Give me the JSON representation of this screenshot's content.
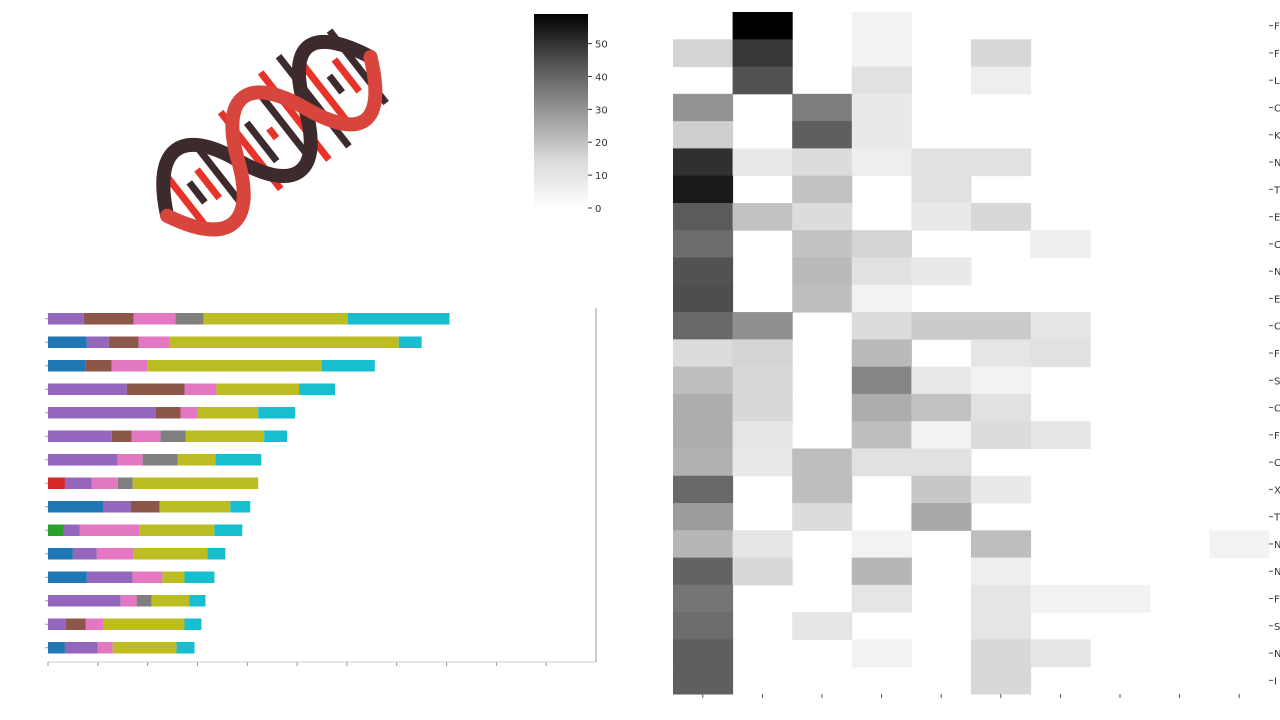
{
  "logo": {
    "icon": "dna-double-helix-icon",
    "colors": {
      "strand": "#d8453c",
      "dark": "#3d2a2c",
      "rung_red": "#e8332a"
    }
  },
  "chart_data": [
    {
      "type": "heatmap",
      "title": "",
      "colormap": "Greys",
      "colorbar": {
        "ticks": [
          0,
          10,
          20,
          30,
          40,
          50
        ],
        "range": [
          0,
          59
        ]
      },
      "row_labels": [
        "F",
        "F",
        "L",
        "C",
        "K",
        "N",
        "T",
        "E",
        "C",
        "N",
        "E",
        "C",
        "F",
        "S",
        "C",
        "F",
        "C",
        "X",
        "T",
        "N",
        "N",
        "F",
        "S",
        "N",
        "I"
      ],
      "n_columns": 10,
      "values": [
        [
          0,
          59,
          0,
          3,
          0,
          0,
          0,
          0,
          0,
          0
        ],
        [
          10,
          46,
          0,
          3,
          0,
          9,
          0,
          0,
          0,
          0
        ],
        [
          0,
          40,
          0,
          7,
          0,
          4,
          0,
          0,
          0,
          0
        ],
        [
          25,
          0,
          30,
          5,
          0,
          0,
          0,
          0,
          0,
          0
        ],
        [
          11,
          0,
          37,
          5,
          0,
          0,
          0,
          0,
          0,
          0
        ],
        [
          48,
          5,
          8,
          4,
          7,
          7,
          0,
          0,
          0,
          0
        ],
        [
          53,
          0,
          14,
          0,
          7,
          0,
          0,
          0,
          0,
          0
        ],
        [
          38,
          14,
          8,
          0,
          5,
          9,
          0,
          0,
          0,
          0
        ],
        [
          34,
          0,
          14,
          10,
          0,
          0,
          4,
          0,
          0,
          0
        ],
        [
          40,
          0,
          16,
          7,
          5,
          0,
          0,
          0,
          0,
          0
        ],
        [
          41,
          0,
          15,
          3,
          0,
          0,
          0,
          0,
          0,
          0
        ],
        [
          35,
          26,
          0,
          8,
          12,
          12,
          6,
          0,
          0,
          0
        ],
        [
          8,
          10,
          0,
          16,
          0,
          6,
          7,
          0,
          0,
          0
        ],
        [
          15,
          9,
          0,
          28,
          5,
          3,
          0,
          0,
          0,
          0
        ],
        [
          19,
          9,
          0,
          19,
          14,
          7,
          0,
          0,
          0,
          0
        ],
        [
          19,
          6,
          0,
          15,
          3,
          8,
          6,
          0,
          0,
          0
        ],
        [
          18,
          5,
          15,
          7,
          7,
          0,
          0,
          0,
          0,
          0
        ],
        [
          35,
          0,
          15,
          0,
          13,
          5,
          0,
          0,
          0,
          0
        ],
        [
          23,
          0,
          8,
          0,
          20,
          0,
          0,
          0,
          0,
          0
        ],
        [
          17,
          6,
          0,
          3,
          0,
          15,
          0,
          0,
          0,
          3
        ],
        [
          36,
          9,
          0,
          17,
          0,
          4,
          0,
          0,
          0,
          0
        ],
        [
          32,
          0,
          0,
          6,
          0,
          6,
          3,
          3,
          0,
          0
        ],
        [
          34,
          0,
          6,
          0,
          0,
          6,
          0,
          0,
          0,
          0
        ],
        [
          37,
          0,
          0,
          3,
          0,
          9,
          6,
          0,
          0,
          0
        ],
        [
          37,
          0,
          0,
          0,
          0,
          9,
          0,
          0,
          0,
          0
        ]
      ]
    },
    {
      "type": "bar",
      "orientation": "horizontal",
      "stacked": true,
      "title": "",
      "xlabel": "",
      "ylabel": "",
      "xlim": [
        0,
        550
      ],
      "x_tick_values": [
        0,
        50,
        100,
        150,
        200,
        250,
        300,
        350,
        400,
        450,
        500
      ],
      "n_rows": 15,
      "segment_colors": [
        "#1f77b4",
        "#d62728",
        "#2ca02c",
        "#9467bd",
        "#8c564b",
        "#e377c2",
        "#7f7f7f",
        "#bcbd22",
        "#17becf"
      ],
      "rows": [
        [
          0,
          0,
          0,
          36,
          50,
          42,
          28,
          145,
          102
        ],
        [
          39,
          0,
          0,
          22,
          30,
          31,
          0,
          230,
          23
        ],
        [
          38,
          0,
          0,
          0,
          26,
          36,
          0,
          175,
          53
        ],
        [
          0,
          0,
          0,
          79,
          58,
          32,
          0,
          83,
          36
        ],
        [
          0,
          0,
          0,
          108,
          25,
          17,
          0,
          61,
          37
        ],
        [
          0,
          0,
          0,
          64,
          20,
          29,
          25,
          79,
          23
        ],
        [
          0,
          0,
          0,
          70,
          0,
          25,
          35,
          38,
          46
        ],
        [
          0,
          17,
          0,
          27,
          0,
          26,
          15,
          126,
          0
        ],
        [
          56,
          0,
          0,
          27,
          29,
          0,
          0,
          71,
          20
        ],
        [
          0,
          0,
          16,
          16,
          0,
          60,
          0,
          75,
          28
        ],
        [
          25,
          0,
          0,
          24,
          0,
          37,
          0,
          74,
          18
        ],
        [
          39,
          0,
          0,
          46,
          0,
          30,
          0,
          22,
          30
        ],
        [
          0,
          0,
          0,
          73,
          0,
          16,
          15,
          38,
          16
        ],
        [
          0,
          0,
          0,
          18,
          20,
          18,
          0,
          81,
          17
        ],
        [
          17,
          0,
          0,
          33,
          0,
          15,
          0,
          64,
          18
        ]
      ]
    }
  ]
}
